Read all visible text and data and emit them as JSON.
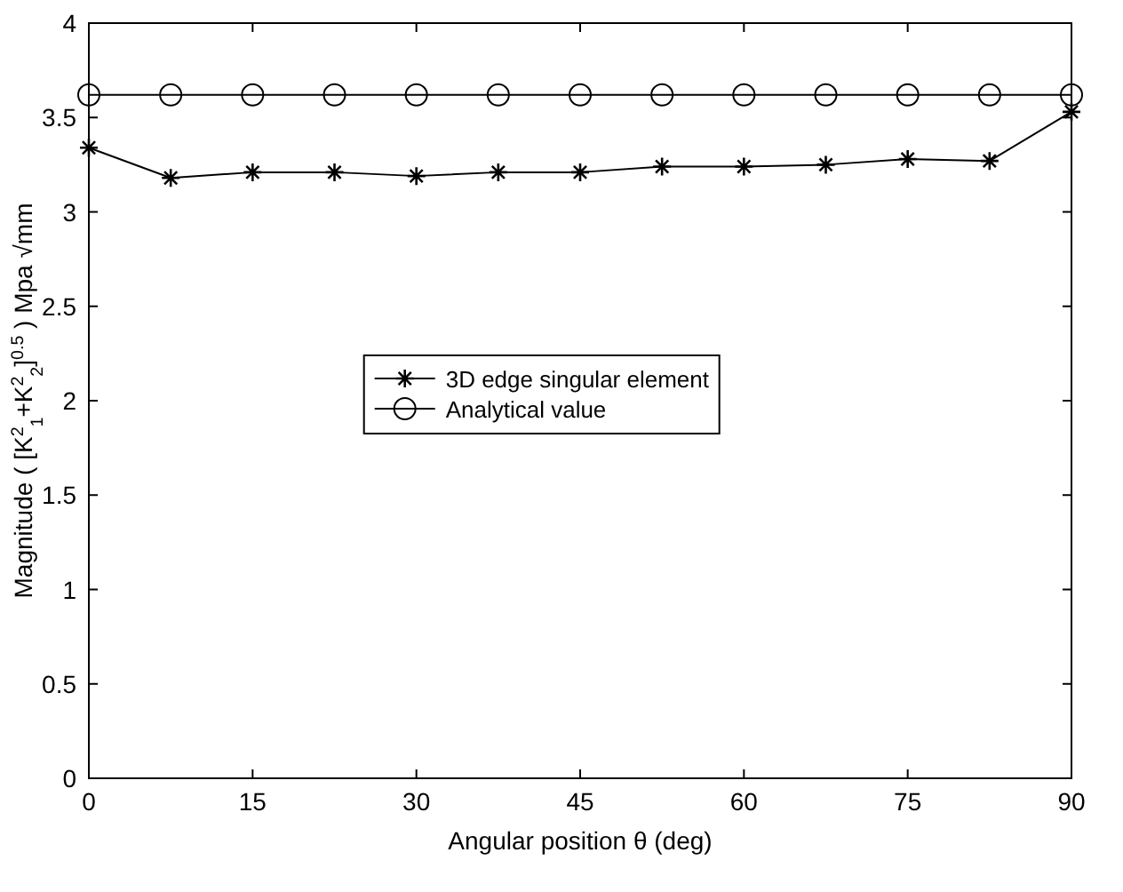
{
  "chart_data": {
    "type": "line",
    "xlabel": "Angular position θ  (deg)",
    "ylabel": "Magnitude ( [K$^{2}$$_{1}$+K$^{2}$$_{2}$]$^{0.5}$ ) Mpa √mm",
    "x": [
      0,
      7.5,
      15,
      22.5,
      30,
      37.5,
      45,
      52.5,
      60,
      67.5,
      75,
      82.5,
      90
    ],
    "series": [
      {
        "name": "3D edge singular element",
        "color": "#000000",
        "marker": "cross",
        "values": [
          3.34,
          3.18,
          3.21,
          3.21,
          3.19,
          3.21,
          3.21,
          3.24,
          3.24,
          3.25,
          3.28,
          3.27,
          3.53
        ]
      },
      {
        "name": "Analytical value",
        "color": "#000000",
        "marker": "circle",
        "values": [
          3.62,
          3.62,
          3.62,
          3.62,
          3.62,
          3.62,
          3.62,
          3.62,
          3.62,
          3.62,
          3.62,
          3.62,
          3.62
        ]
      }
    ],
    "xlim": [
      0,
      90
    ],
    "xticks": [
      0,
      15,
      30,
      45,
      60,
      75,
      90
    ],
    "ylim": [
      0,
      4
    ],
    "yticks": [
      0,
      0.5,
      1,
      1.5,
      2,
      2.5,
      3,
      3.5,
      4
    ],
    "grid": false,
    "legend": "center",
    "line_style": "solid"
  }
}
